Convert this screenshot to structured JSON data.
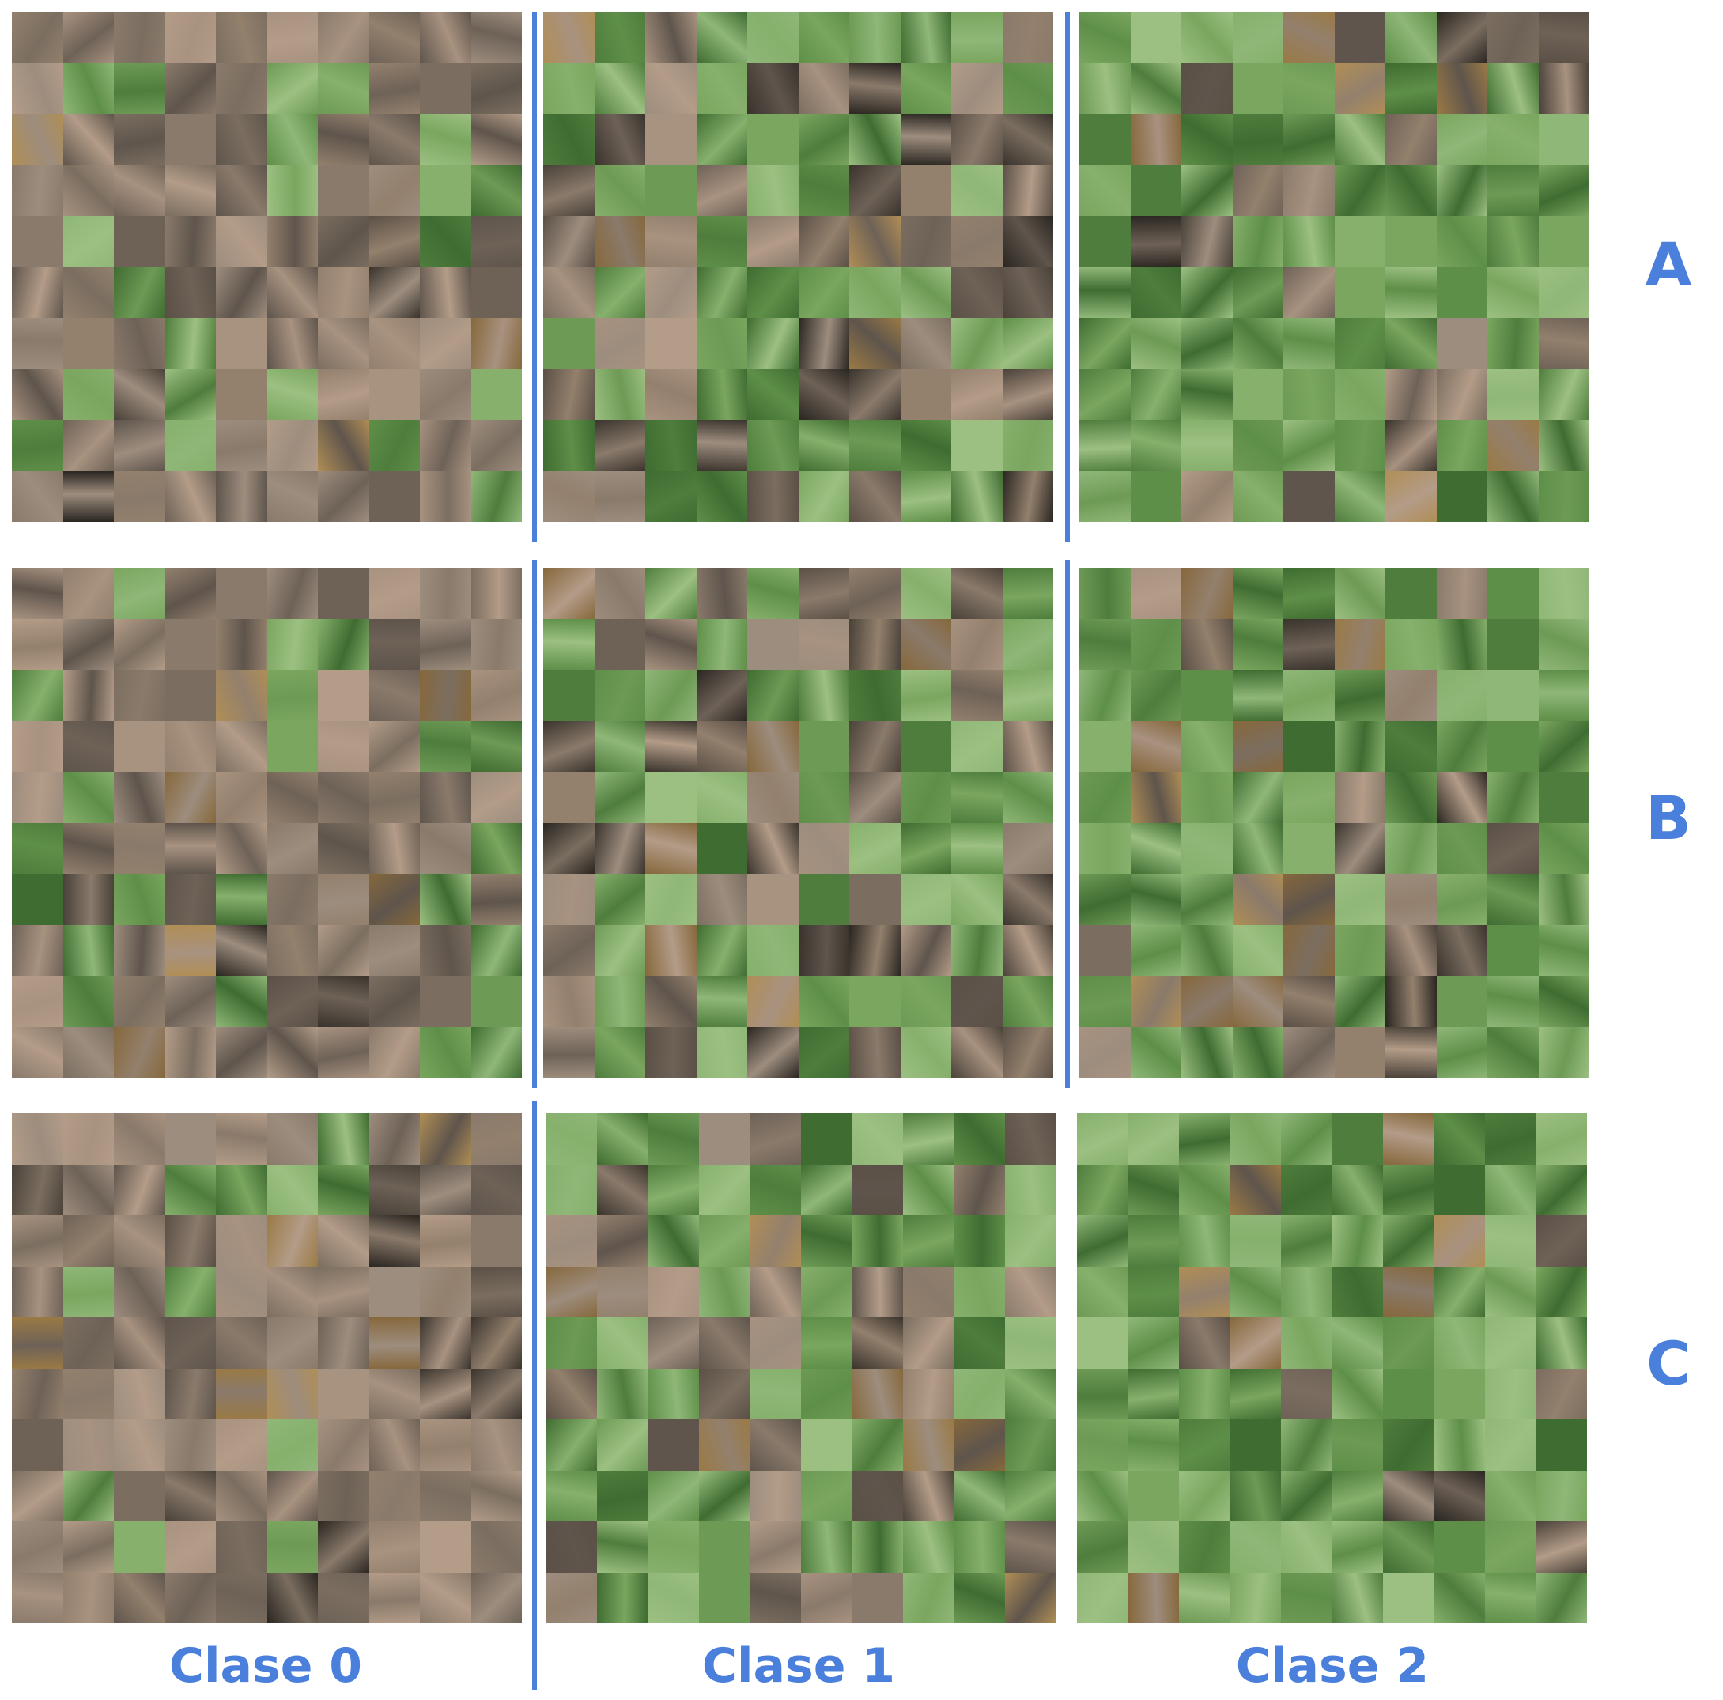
{
  "accent": "#4a80dc",
  "rows": [
    "A",
    "B",
    "C"
  ],
  "columns": [
    "Clase 0",
    "Clase 1",
    "Clase 2"
  ],
  "mosaic": {
    "grid": 10,
    "content": "field-photo patches of soil and soybean plants, greenness increasing with class"
  },
  "palettes": {
    "soil": [
      "#8a7a6b",
      "#9d8d7e",
      "#a89280",
      "#6e6257",
      "#7b6e60",
      "#b39c88",
      "#5f554c",
      "#93806d"
    ],
    "dark_soil": [
      "#2a2621",
      "#3a342d",
      "#4a4239",
      "#5b5046"
    ],
    "green": [
      "#5e8f48",
      "#7aa65f",
      "#8fb778",
      "#4f7d3d",
      "#6d9a55",
      "#9cc082",
      "#3f6c31",
      "#86b06c"
    ],
    "straw": [
      "#9a7a45",
      "#b08e55",
      "#86683c"
    ]
  },
  "class_mix": [
    {
      "soil": 0.72,
      "dark": 0.05,
      "green": 0.18,
      "straw": 0.05
    },
    {
      "soil": 0.22,
      "dark": 0.22,
      "green": 0.5,
      "straw": 0.06
    },
    {
      "soil": 0.1,
      "dark": 0.06,
      "green": 0.74,
      "straw": 0.1
    }
  ],
  "row_mix_override": {
    "2": [
      {
        "soil": 0.78,
        "dark": 0.08,
        "green": 0.1,
        "straw": 0.04
      },
      {
        "soil": 0.18,
        "dark": 0.14,
        "green": 0.6,
        "straw": 0.08
      },
      {
        "soil": 0.02,
        "dark": 0.02,
        "green": 0.92,
        "straw": 0.04
      }
    ]
  }
}
